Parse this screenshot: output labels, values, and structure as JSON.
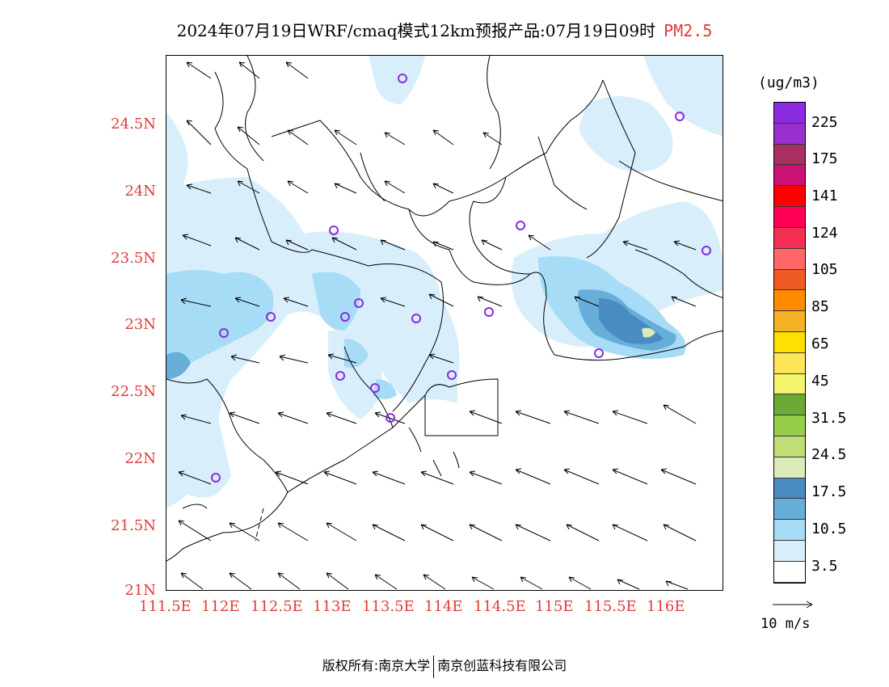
{
  "title": {
    "main": "2024年07月19日WRF/cmaq模式12km预报产品:07月19日09时",
    "variable": "PM2.5"
  },
  "map": {
    "lat_labels": [
      "24.5N",
      "24N",
      "23.5N",
      "23N",
      "22.5N",
      "22N",
      "21.5N",
      "21N"
    ],
    "lon_labels": [
      "111.5E",
      "112E",
      "112.5E",
      "113E",
      "113.5E",
      "114E",
      "114.5E",
      "115E",
      "115.5E",
      "116E"
    ],
    "station_marker": "purple-circle",
    "wind_direction": "from east-southeast"
  },
  "legend": {
    "unit": "(ug/m3)",
    "labels": [
      "225",
      "175",
      "141",
      "124",
      "105",
      "85",
      "65",
      "45",
      "31.5",
      "24.5",
      "17.5",
      "10.5",
      "3.5"
    ],
    "colors": [
      "#ffffff",
      "#d8eefb",
      "#a6dcf6",
      "#67aed9",
      "#4a8cc2",
      "#dcebbc",
      "#c0dd78",
      "#96cd4a",
      "#6caa35",
      "#f2f56b",
      "#ffe55a",
      "#ffe000",
      "#f5b126",
      "#ff8c00",
      "#f05a24",
      "#ff6666",
      "#f52e56",
      "#ff0055",
      "#ff0000",
      "#cc1177",
      "#a83060",
      "#9a2fd0",
      "#8a2be2"
    ]
  },
  "vector_reference": {
    "label": "10 m/s"
  },
  "footer": {
    "left": "版权所有:南京大学",
    "right": "南京创蓝科技有限公司"
  }
}
